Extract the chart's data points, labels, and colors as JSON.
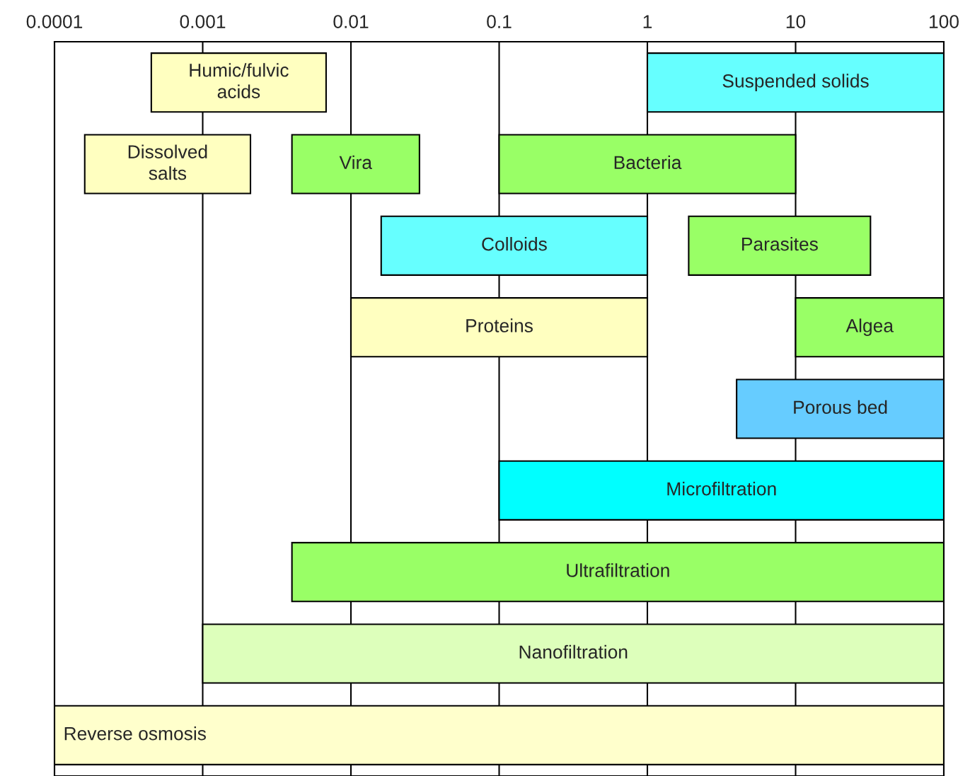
{
  "chart_data": {
    "type": "bar",
    "orientation": "horizontal",
    "log": "x",
    "xlim": [
      0.0001,
      100
    ],
    "xticks": [
      {
        "value": 0.0001,
        "label": "0.0001"
      },
      {
        "value": 0.001,
        "label": "0.001"
      },
      {
        "value": 0.01,
        "label": "0.01"
      },
      {
        "value": 0.1,
        "label": "0.1"
      },
      1,
      10,
      100
    ],
    "grid": "x",
    "legend": false,
    "categories": [
      null,
      null,
      null,
      null,
      null,
      null,
      null,
      null,
      null
    ],
    "series": [
      {
        "name": "Humic/fulvic\nacids",
        "color": "#ffffc0",
        "values": [
          0.00635,
          null,
          null,
          null,
          null,
          null,
          null,
          null,
          null
        ],
        "base": [
          0.00045,
          null,
          null,
          null,
          null,
          null,
          null,
          null,
          null
        ]
      },
      {
        "name": "Suspended solids",
        "color": "#66ffff",
        "values": [
          99,
          null,
          null,
          null,
          null,
          null,
          null,
          null,
          null
        ],
        "base": [
          1,
          null,
          null,
          null,
          null,
          null,
          null,
          null,
          null
        ]
      },
      {
        "name": "Dissolved\nsalts",
        "color": "#ffffc0",
        "values": [
          null,
          0.00194,
          null,
          null,
          null,
          null,
          null,
          null,
          null
        ],
        "base": [
          null,
          0.00016,
          null,
          null,
          null,
          null,
          null,
          null,
          null
        ]
      },
      {
        "name": "Vira",
        "color": "#99ff66",
        "values": [
          null,
          0.025,
          null,
          null,
          null,
          null,
          null,
          null,
          null
        ],
        "base": [
          null,
          0.004,
          null,
          null,
          null,
          null,
          null,
          null,
          null
        ]
      },
      {
        "name": "Bacteria",
        "color": "#99ff66",
        "values": [
          null,
          9.9,
          null,
          null,
          null,
          null,
          null,
          null,
          null
        ],
        "base": [
          null,
          0.1,
          null,
          null,
          null,
          null,
          null,
          null,
          null
        ]
      },
      {
        "name": "Colloids",
        "color": "#66ffff",
        "values": [
          null,
          null,
          0.984,
          null,
          null,
          null,
          null,
          null,
          null
        ],
        "base": [
          null,
          null,
          0.016,
          null,
          null,
          null,
          null,
          null,
          null
        ]
      },
      {
        "name": "Parasites",
        "color": "#99ff66",
        "values": [
          null,
          null,
          30.1,
          null,
          null,
          null,
          null,
          null,
          null
        ],
        "base": [
          null,
          null,
          1.9,
          null,
          null,
          null,
          null,
          null,
          null
        ]
      },
      {
        "name": "Proteins",
        "color": "#ffffc0",
        "values": [
          null,
          null,
          null,
          0.99,
          null,
          null,
          null,
          null,
          null
        ],
        "base": [
          null,
          null,
          null,
          0.01,
          null,
          null,
          null,
          null,
          null
        ]
      },
      {
        "name": "Algea",
        "color": "#99ff66",
        "values": [
          null,
          null,
          null,
          90,
          null,
          null,
          null,
          null,
          null
        ],
        "base": [
          null,
          null,
          null,
          10,
          null,
          null,
          null,
          null,
          null
        ]
      },
      {
        "name": "Porous bed",
        "color": "#66ccff",
        "values": [
          null,
          null,
          null,
          null,
          96,
          null,
          null,
          null,
          null
        ],
        "base": [
          null,
          null,
          null,
          null,
          4,
          null,
          null,
          null,
          null
        ]
      },
      {
        "name": "Microfiltration",
        "color": "#00ffff",
        "values": [
          null,
          null,
          null,
          null,
          null,
          99.9,
          null,
          null,
          null
        ],
        "base": [
          null,
          null,
          null,
          null,
          null,
          0.1,
          null,
          null,
          null
        ]
      },
      {
        "name": "Ultrafiltration",
        "color": "#99ff66",
        "values": [
          null,
          null,
          null,
          null,
          null,
          null,
          99.996,
          null,
          null
        ],
        "base": [
          null,
          null,
          null,
          null,
          null,
          null,
          0.004,
          null,
          null
        ]
      },
      {
        "name": "Nanofiltration",
        "color": "#ddffbb",
        "values": [
          null,
          null,
          null,
          null,
          null,
          null,
          null,
          99.999,
          null
        ],
        "base": [
          null,
          null,
          null,
          null,
          null,
          null,
          null,
          0.001,
          null
        ]
      },
      {
        "name": "Reverse osmosis",
        "color": "#ffffcc",
        "values": [
          null,
          null,
          null,
          null,
          null,
          null,
          null,
          null,
          99.9999
        ],
        "base": [
          null,
          null,
          null,
          null,
          null,
          null,
          null,
          null,
          0.0001
        ]
      }
    ]
  }
}
